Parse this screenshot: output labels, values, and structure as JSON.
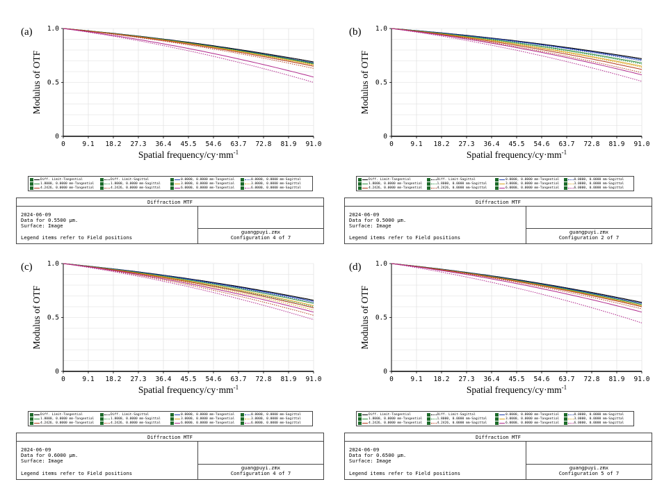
{
  "colors": {
    "series": [
      "#000000",
      "#000000",
      "#1e3fae",
      "#1e3fae",
      "#2f8f3f",
      "#2f8f3f",
      "#d9a21b",
      "#d9a21b",
      "#b33a1c",
      "#b33a1c",
      "#b0288c",
      "#b0288c"
    ],
    "axis": "#000000",
    "grid": "#dcdcdc"
  },
  "axis_labels": {
    "ylabel": "Modulus of OTF",
    "xlabel": "Spatial frequency/cy·mm",
    "xlabel_sup": "-1",
    "yticks": [
      "0",
      "0.5",
      "1.0"
    ],
    "xticks": [
      "0",
      "9.1",
      "18.2",
      "27.3",
      "36.4",
      "45.5",
      "54.6",
      "63.7",
      "72.8",
      "81.9",
      "91.0"
    ]
  },
  "legend_items": [
    "Diff. Limit-Tangential",
    "Diff. Limit-Sagittal",
    "0.0000, 0.0000 mm-Tangential",
    "0.0000, 0.0000 mm-Sagittal",
    "1.8000, 0.0000 mm-Tangential",
    "1.8000, 0.0000 mm-Sagittal",
    "3.0000, 0.0000 mm-Tangential",
    "3.0000, 0.0000 mm-Sagittal",
    "4.2426, 0.0000 mm-Tangential",
    "4.2426, 0.0000 mm-Sagittal",
    "6.0000, 0.0000 mm-Tangential",
    "6.0000, 0.0000 mm-Sagittal"
  ],
  "panels": [
    {
      "letter": "(a)",
      "info": {
        "title": "Diffraction MTF",
        "date": "2024-06-09",
        "data_for": "Data for 0.5500 µm.",
        "surface": "Surface: Image",
        "note": "Legend items refer to Field positions",
        "file": "guangpuyi.zmx",
        "config": "Configuration 4 of 7"
      }
    },
    {
      "letter": "(b)",
      "info": {
        "title": "Diffraction MTF",
        "date": "2024-06-09",
        "data_for": "Data for 0.5000 µm.",
        "surface": "Surface: Image",
        "note": "Legend items refer to Field positions",
        "file": "guangpuyi.zmx",
        "config": "Configuration 2 of 7"
      }
    },
    {
      "letter": "(c)",
      "info": {
        "title": "Diffraction MTF",
        "date": "2024-06-09",
        "data_for": "Data for 0.6000 µm.",
        "surface": "Surface: Image",
        "note": "Legend items refer to Field positions",
        "file": "guangpuyi.zmx",
        "config": "Configuration 4 of 7"
      }
    },
    {
      "letter": "(d)",
      "info": {
        "title": "Diffraction MTF",
        "date": "2024-06-09",
        "data_for": "Data for 0.6500 µm.",
        "surface": "Surface: Image",
        "note": "Legend items refer to Field positions",
        "file": "guangpuyi.zmx",
        "config": "Configuration 5 of 7"
      }
    }
  ],
  "chart_data": [
    {
      "type": "line",
      "xlabel": "Spatial frequency/cy·mm-1",
      "ylabel": "Modulus of OTF",
      "xlim": [
        0,
        91.0
      ],
      "ylim": [
        0,
        1.0
      ],
      "x": [
        0,
        91.0
      ],
      "series": [
        {
          "name": "Diff. Limit-Tangential",
          "values": [
            1.0,
            0.69
          ]
        },
        {
          "name": "Diff. Limit-Sagittal",
          "values": [
            1.0,
            0.69
          ]
        },
        {
          "name": "0.0000, 0.0000 mm-Tangential",
          "values": [
            1.0,
            0.68
          ]
        },
        {
          "name": "0.0000, 0.0000 mm-Sagittal",
          "values": [
            1.0,
            0.68
          ]
        },
        {
          "name": "1.8000, 0.0000 mm-Tangential",
          "values": [
            1.0,
            0.675
          ]
        },
        {
          "name": "1.8000, 0.0000 mm-Sagittal",
          "values": [
            1.0,
            0.67
          ]
        },
        {
          "name": "3.0000, 0.0000 mm-Tangential",
          "values": [
            1.0,
            0.665
          ]
        },
        {
          "name": "3.0000, 0.0000 mm-Sagittal",
          "values": [
            1.0,
            0.655
          ]
        },
        {
          "name": "4.2426, 0.0000 mm-Tangential",
          "values": [
            1.0,
            0.65
          ]
        },
        {
          "name": "4.2426, 0.0000 mm-Sagittal",
          "values": [
            1.0,
            0.63
          ]
        },
        {
          "name": "6.0000, 0.0000 mm-Tangential",
          "values": [
            1.0,
            0.55
          ]
        },
        {
          "name": "6.0000, 0.0000 mm-Sagittal",
          "values": [
            1.0,
            0.5
          ]
        }
      ]
    },
    {
      "type": "line",
      "xlabel": "Spatial frequency/cy·mm-1",
      "ylabel": "Modulus of OTF",
      "xlim": [
        0,
        91.0
      ],
      "ylim": [
        0,
        1.0
      ],
      "x": [
        0,
        91.0
      ],
      "series": [
        {
          "name": "Diff. Limit-Tangential",
          "values": [
            1.0,
            0.72
          ]
        },
        {
          "name": "Diff. Limit-Sagittal",
          "values": [
            1.0,
            0.72
          ]
        },
        {
          "name": "0.0000, 0.0000 mm-Tangential",
          "values": [
            1.0,
            0.71
          ]
        },
        {
          "name": "0.0000, 0.0000 mm-Sagittal",
          "values": [
            1.0,
            0.7
          ]
        },
        {
          "name": "1.8000, 0.0000 mm-Tangential",
          "values": [
            1.0,
            0.68
          ]
        },
        {
          "name": "1.8000, 0.0000 mm-Sagittal",
          "values": [
            1.0,
            0.67
          ]
        },
        {
          "name": "3.0000, 0.0000 mm-Tangential",
          "values": [
            1.0,
            0.65
          ]
        },
        {
          "name": "3.0000, 0.0000 mm-Sagittal",
          "values": [
            1.0,
            0.64
          ]
        },
        {
          "name": "4.2426, 0.0000 mm-Tangential",
          "values": [
            1.0,
            0.62
          ]
        },
        {
          "name": "4.2426, 0.0000 mm-Sagittal",
          "values": [
            1.0,
            0.59
          ]
        },
        {
          "name": "6.0000, 0.0000 mm-Tangential",
          "values": [
            1.0,
            0.57
          ]
        },
        {
          "name": "6.0000, 0.0000 mm-Sagittal",
          "values": [
            1.0,
            0.51
          ]
        }
      ]
    },
    {
      "type": "line",
      "xlabel": "Spatial frequency/cy·mm-1",
      "ylabel": "Modulus of OTF",
      "xlim": [
        0,
        91.0
      ],
      "ylim": [
        0,
        1.0
      ],
      "x": [
        0,
        91.0
      ],
      "series": [
        {
          "name": "Diff. Limit-Tangential",
          "values": [
            1.0,
            0.66
          ]
        },
        {
          "name": "Diff. Limit-Sagittal",
          "values": [
            1.0,
            0.66
          ]
        },
        {
          "name": "0.0000, 0.0000 mm-Tangential",
          "values": [
            1.0,
            0.65
          ]
        },
        {
          "name": "0.0000, 0.0000 mm-Sagittal",
          "values": [
            1.0,
            0.64
          ]
        },
        {
          "name": "1.8000, 0.0000 mm-Tangential",
          "values": [
            1.0,
            0.63
          ]
        },
        {
          "name": "1.8000, 0.0000 mm-Sagittal",
          "values": [
            1.0,
            0.6
          ]
        },
        {
          "name": "3.0000, 0.0000 mm-Tangential",
          "values": [
            1.0,
            0.61
          ]
        },
        {
          "name": "3.0000, 0.0000 mm-Sagittal",
          "values": [
            1.0,
            0.57
          ]
        },
        {
          "name": "4.2426, 0.0000 mm-Tangential",
          "values": [
            1.0,
            0.59
          ]
        },
        {
          "name": "4.2426, 0.0000 mm-Sagittal",
          "values": [
            1.0,
            0.52
          ]
        },
        {
          "name": "6.0000, 0.0000 mm-Tangential",
          "values": [
            1.0,
            0.55
          ]
        },
        {
          "name": "6.0000, 0.0000 mm-Sagittal",
          "values": [
            1.0,
            0.48
          ]
        }
      ]
    },
    {
      "type": "line",
      "xlabel": "Spatial frequency/cy·mm-1",
      "ylabel": "Modulus of OTF",
      "xlim": [
        0,
        91.0
      ],
      "ylim": [
        0,
        1.0
      ],
      "x": [
        0,
        91.0
      ],
      "series": [
        {
          "name": "Diff. Limit-Tangential",
          "values": [
            1.0,
            0.64
          ]
        },
        {
          "name": "Diff. Limit-Sagittal",
          "values": [
            1.0,
            0.64
          ]
        },
        {
          "name": "0.0000, 0.0000 mm-Tangential",
          "values": [
            1.0,
            0.63
          ]
        },
        {
          "name": "0.0000, 0.0000 mm-Sagittal",
          "values": [
            1.0,
            0.63
          ]
        },
        {
          "name": "1.8000, 0.0000 mm-Tangential",
          "values": [
            1.0,
            0.62
          ]
        },
        {
          "name": "1.8000, 0.0000 mm-Sagittal",
          "values": [
            1.0,
            0.61
          ]
        },
        {
          "name": "3.0000, 0.0000 mm-Tangential",
          "values": [
            1.0,
            0.61
          ]
        },
        {
          "name": "3.0000, 0.0000 mm-Sagittal",
          "values": [
            1.0,
            0.6
          ]
        },
        {
          "name": "4.2426, 0.0000 mm-Tangential",
          "values": [
            1.0,
            0.6
          ]
        },
        {
          "name": "4.2426, 0.0000 mm-Sagittal",
          "values": [
            1.0,
            0.58
          ]
        },
        {
          "name": "6.0000, 0.0000 mm-Tangential",
          "values": [
            1.0,
            0.55
          ]
        },
        {
          "name": "6.0000, 0.0000 mm-Sagittal",
          "values": [
            1.0,
            0.45
          ]
        }
      ]
    }
  ]
}
